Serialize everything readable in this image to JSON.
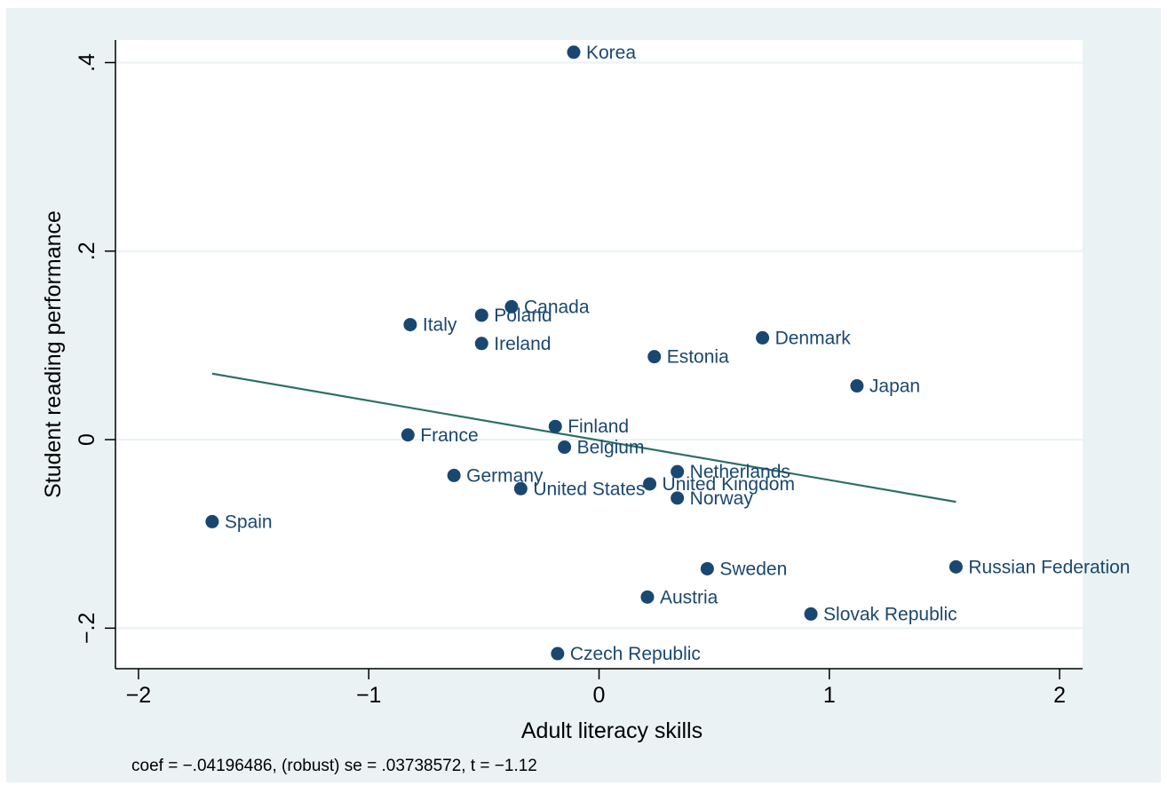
{
  "chart_data": {
    "type": "scatter",
    "xlabel": "Adult literacy skills",
    "ylabel": "Student reading performance",
    "note": "coef = −.04196486, (robust) se = .03738572, t = −1.12",
    "xlim": [
      -2.1,
      2.1
    ],
    "ylim": [
      -0.243,
      0.424
    ],
    "x_ticks": [
      {
        "value": -2,
        "label": "−2"
      },
      {
        "value": -1,
        "label": "−1"
      },
      {
        "value": 0,
        "label": "0"
      },
      {
        "value": 1,
        "label": "1"
      },
      {
        "value": 2,
        "label": "2"
      }
    ],
    "y_ticks": [
      {
        "value": -0.2,
        "label": "−.2"
      },
      {
        "value": 0,
        "label": "0"
      },
      {
        "value": 0.2,
        "label": ".2"
      },
      {
        "value": 0.4,
        "label": ".4"
      }
    ],
    "grid": true,
    "colors": {
      "marker": "#1a476f",
      "label": "#1a476f",
      "fit": "#2e7065",
      "panel": "#eaf2f3",
      "plot": "#ffffff",
      "grid": "#eaf2f3",
      "axis": "#000000"
    },
    "fit_line": {
      "x": [
        -1.68,
        1.55
      ],
      "y": [
        0.07,
        -0.066
      ]
    },
    "points": [
      {
        "label": "Korea",
        "x": -0.11,
        "y": 0.411
      },
      {
        "label": "Canada",
        "x": -0.38,
        "y": 0.141
      },
      {
        "label": "Poland",
        "x": -0.51,
        "y": 0.132
      },
      {
        "label": "Italy",
        "x": -0.82,
        "y": 0.122
      },
      {
        "label": "Ireland",
        "x": -0.51,
        "y": 0.102
      },
      {
        "label": "Denmark",
        "x": 0.71,
        "y": 0.108
      },
      {
        "label": "Estonia",
        "x": 0.24,
        "y": 0.088
      },
      {
        "label": "Japan",
        "x": 1.12,
        "y": 0.057
      },
      {
        "label": "Finland",
        "x": -0.19,
        "y": 0.014
      },
      {
        "label": "France",
        "x": -0.83,
        "y": 0.005
      },
      {
        "label": "Belgium",
        "x": -0.15,
        "y": -0.008
      },
      {
        "label": "Netherlands",
        "x": 0.34,
        "y": -0.034
      },
      {
        "label": "Germany",
        "x": -0.63,
        "y": -0.038
      },
      {
        "label": "United Kingdom",
        "x": 0.22,
        "y": -0.047
      },
      {
        "label": "United States",
        "x": -0.34,
        "y": -0.052
      },
      {
        "label": "Norway",
        "x": 0.34,
        "y": -0.062
      },
      {
        "label": "Spain",
        "x": -1.68,
        "y": -0.087
      },
      {
        "label": "Sweden",
        "x": 0.47,
        "y": -0.137
      },
      {
        "label": "Russian Federation",
        "x": 1.55,
        "y": -0.135
      },
      {
        "label": "Austria",
        "x": 0.21,
        "y": -0.167
      },
      {
        "label": "Slovak Republic",
        "x": 0.92,
        "y": -0.185
      },
      {
        "label": "Czech Republic",
        "x": -0.18,
        "y": -0.227
      }
    ]
  }
}
